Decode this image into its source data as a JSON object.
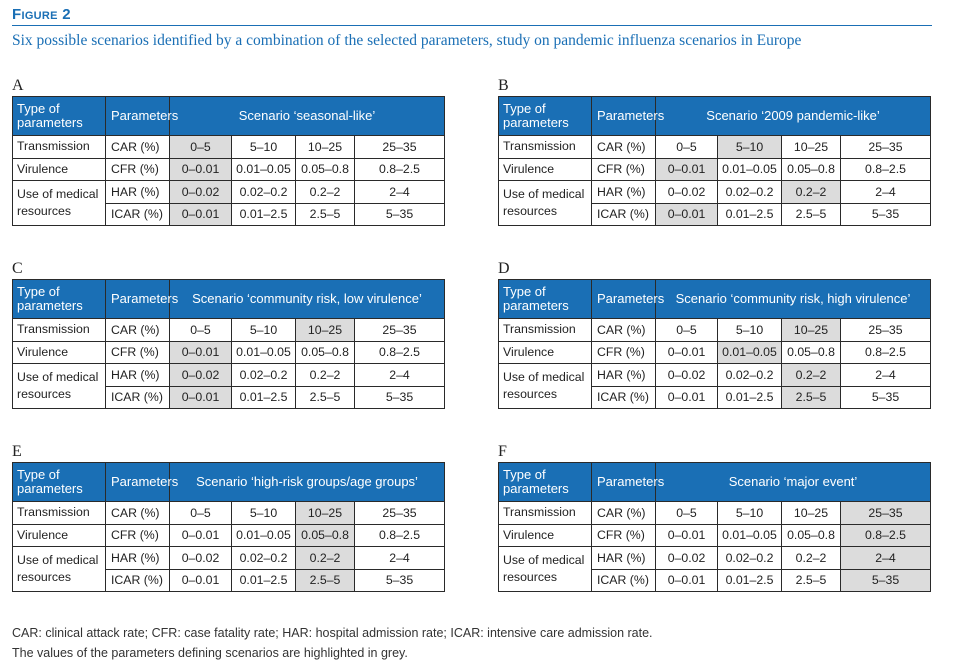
{
  "figure": {
    "title": "Figure 2",
    "caption": "Six possible scenarios identified by a combination of the selected parameters, study on pandemic influenza scenarios in Europe"
  },
  "headers": {
    "type": "Type of parameters",
    "parameters": "Parameters"
  },
  "rows": [
    {
      "type": "Transmission",
      "param": "CAR (%)",
      "values": [
        "0–5",
        "5–10",
        "10–25",
        "25–35"
      ]
    },
    {
      "type": "Virulence",
      "param": "CFR (%)",
      "values": [
        "0–0.01",
        "0.01–0.05",
        "0.05–0.8",
        "0.8–2.5"
      ]
    },
    {
      "type": "Use of medical resources",
      "param": "HAR (%)",
      "values": [
        "0–0.02",
        "0.02–0.2",
        "0.2–2",
        "2–4"
      ]
    },
    {
      "type": "",
      "param": "ICAR (%)",
      "values": [
        "0–0.01",
        "0.01–2.5",
        "2.5–5",
        "5–35"
      ]
    }
  ],
  "panels": [
    {
      "letter": "A",
      "scenario": "Scenario ‘seasonal-like’",
      "highlight": [
        0,
        0,
        0,
        0
      ]
    },
    {
      "letter": "B",
      "scenario": "Scenario ‘2009 pandemic-like’",
      "highlight": [
        1,
        0,
        2,
        0
      ]
    },
    {
      "letter": "C",
      "scenario": "Scenario ‘community risk, low virulence’",
      "highlight": [
        2,
        0,
        0,
        0
      ]
    },
    {
      "letter": "D",
      "scenario": "Scenario ‘community risk, high virulence’",
      "highlight": [
        2,
        1,
        2,
        2
      ]
    },
    {
      "letter": "E",
      "scenario": "Scenario ‘high-risk groups/age groups’",
      "highlight": [
        2,
        2,
        2,
        2
      ]
    },
    {
      "letter": "F",
      "scenario": "Scenario ‘major event’",
      "highlight": [
        3,
        3,
        3,
        3
      ]
    }
  ],
  "footnotes": [
    "CAR: clinical attack rate; CFR: case fatality rate; HAR: hospital admission rate; ICAR: intensive care admission rate.",
    "The values of the parameters defining scenarios are highlighted in grey."
  ]
}
